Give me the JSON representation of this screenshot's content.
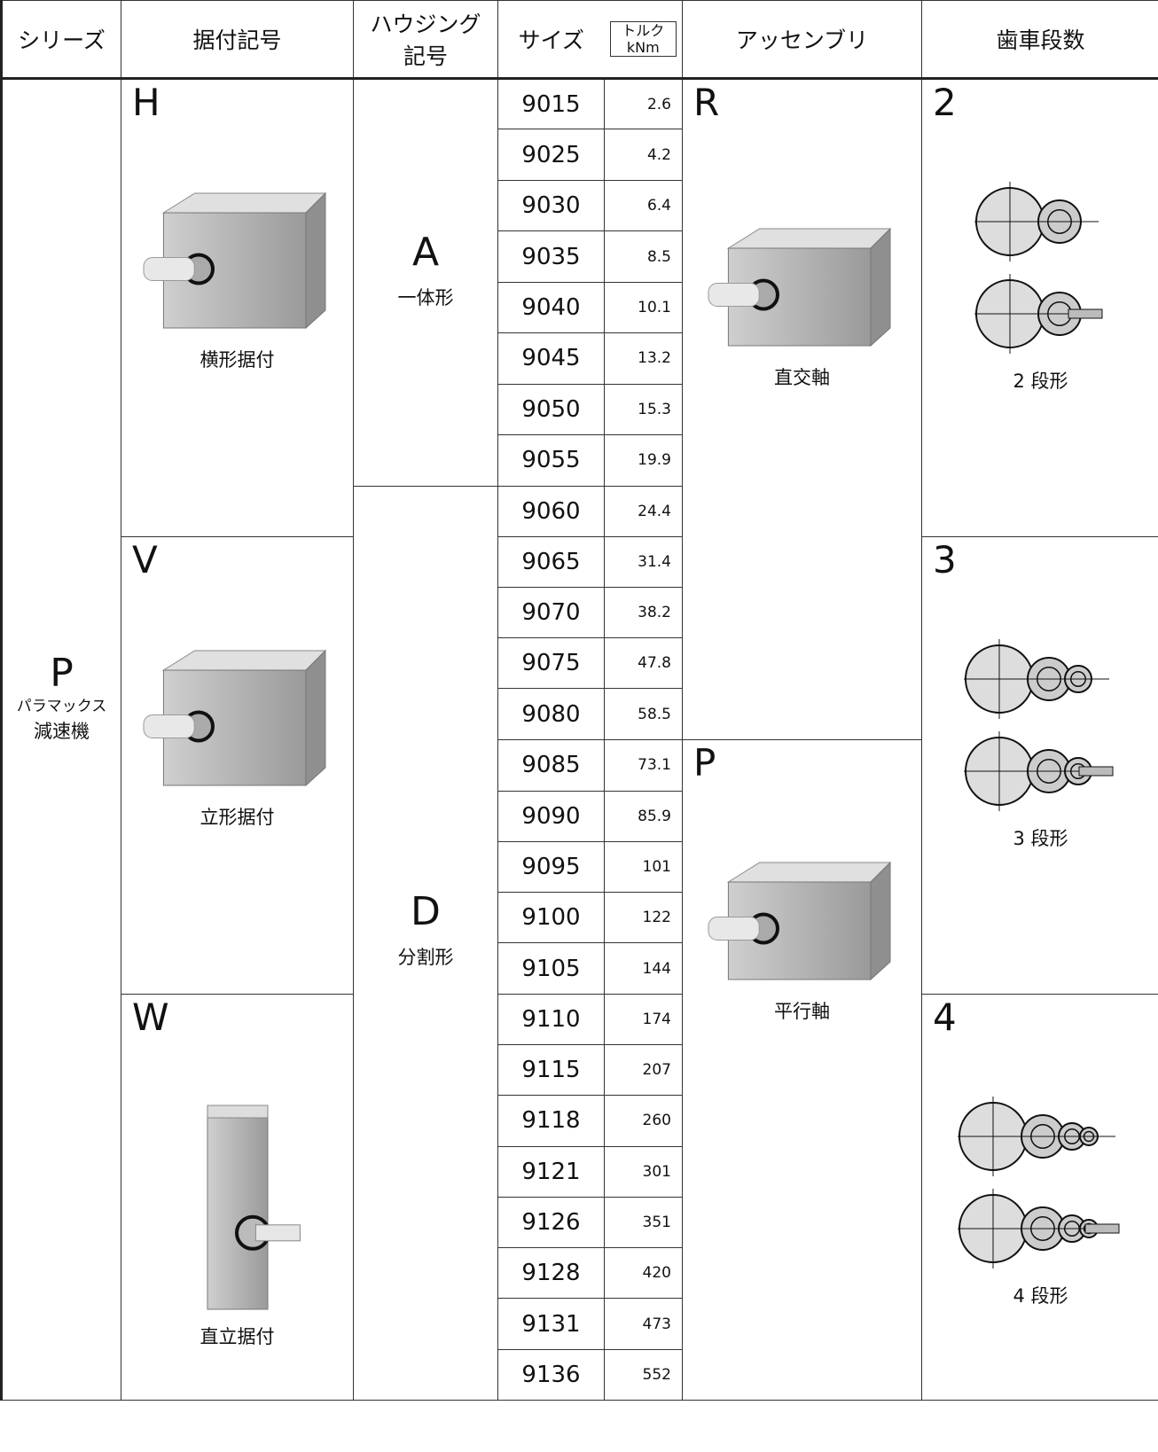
{
  "header": {
    "series": "シリーズ",
    "mounting": "据付記号",
    "housing": [
      "ハウジング",
      "記号"
    ],
    "size": "サイズ",
    "torque": [
      "トルク",
      "kNm"
    ],
    "assembly": "アッセンブリ",
    "stages": "歯車段数"
  },
  "series": {
    "code": "P",
    "name": [
      "パラマックス",
      "減速機"
    ]
  },
  "mountings": [
    {
      "code": "H",
      "label": "横形据付"
    },
    {
      "code": "V",
      "label": "立形据付"
    },
    {
      "code": "W",
      "label": "直立据付"
    }
  ],
  "housings": [
    {
      "code": "A",
      "label": "一体形"
    },
    {
      "code": "D",
      "label": "分割形"
    }
  ],
  "assemblies": [
    {
      "code": "R",
      "label": "直交軸"
    },
    {
      "code": "P",
      "label": "平行軸"
    }
  ],
  "stages": [
    {
      "code": "2",
      "label": "2 段形"
    },
    {
      "code": "3",
      "label": "3 段形"
    },
    {
      "code": "4",
      "label": "4 段形"
    }
  ],
  "rows": [
    [
      9015,
      2.6
    ],
    [
      9025,
      4.2
    ],
    [
      9030,
      6.4
    ],
    [
      9035,
      8.5
    ],
    [
      9040,
      10.1
    ],
    [
      9045,
      13.2
    ],
    [
      9050,
      15.3
    ],
    [
      9055,
      19.9
    ],
    [
      9060,
      24.4
    ],
    [
      9065,
      31.4
    ],
    [
      9070,
      38.2
    ],
    [
      9075,
      47.8
    ],
    [
      9080,
      58.5
    ],
    [
      9085,
      73.1
    ],
    [
      9090,
      85.9
    ],
    [
      9095,
      101
    ],
    [
      9100,
      122
    ],
    [
      9105,
      144
    ],
    [
      9110,
      174
    ],
    [
      9115,
      207
    ],
    [
      9118,
      260
    ],
    [
      9121,
      301
    ],
    [
      9126,
      351
    ],
    [
      9128,
      420
    ],
    [
      9131,
      473
    ],
    [
      9136,
      552
    ]
  ]
}
